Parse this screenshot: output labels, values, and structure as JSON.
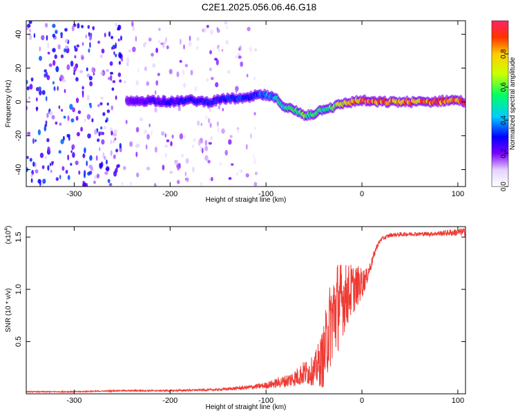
{
  "title": "C2E1.2025.056.06.46.G18",
  "chart_data": [
    {
      "type": "heatmap",
      "xlabel": "Height of straight line (km)",
      "ylabel": "Frequency (Hz)",
      "xlim": [
        -350,
        108
      ],
      "ylim": [
        -50,
        48
      ],
      "xticks": [
        -300,
        -200,
        -100,
        0,
        100
      ],
      "yticks": [
        -40,
        -20,
        0,
        20,
        40
      ],
      "colorbar": {
        "label": "Normalized spectral amplitude",
        "ticks": [
          "0.0",
          "0.2",
          "0.4",
          "0.6",
          "0.8"
        ],
        "range": [
          0,
          1
        ]
      },
      "ridge": [
        {
          "x": -245,
          "f": 0,
          "a": 0.22
        },
        {
          "x": -220,
          "f": 1,
          "a": 0.25
        },
        {
          "x": -200,
          "f": 0,
          "a": 0.28
        },
        {
          "x": -180,
          "f": 1,
          "a": 0.3
        },
        {
          "x": -160,
          "f": 0,
          "a": 0.3
        },
        {
          "x": -140,
          "f": 2,
          "a": 0.32
        },
        {
          "x": -120,
          "f": 2,
          "a": 0.35
        },
        {
          "x": -110,
          "f": 4,
          "a": 0.35
        },
        {
          "x": -100,
          "f": 4,
          "a": 0.4
        },
        {
          "x": -90,
          "f": 2,
          "a": 0.45
        },
        {
          "x": -80,
          "f": -3,
          "a": 0.5
        },
        {
          "x": -70,
          "f": -5,
          "a": 0.55
        },
        {
          "x": -60,
          "f": -8,
          "a": 0.6
        },
        {
          "x": -50,
          "f": -7,
          "a": 0.55
        },
        {
          "x": -40,
          "f": -4,
          "a": 0.55
        },
        {
          "x": -30,
          "f": -3,
          "a": 0.6
        },
        {
          "x": -20,
          "f": -1,
          "a": 0.75
        },
        {
          "x": -10,
          "f": 0,
          "a": 0.8
        },
        {
          "x": 0,
          "f": 1,
          "a": 0.9
        },
        {
          "x": 10,
          "f": 0,
          "a": 0.9
        },
        {
          "x": 30,
          "f": 0,
          "a": 0.85
        },
        {
          "x": 50,
          "f": 0,
          "a": 0.85
        },
        {
          "x": 70,
          "f": 0,
          "a": 0.85
        },
        {
          "x": 90,
          "f": 1,
          "a": 0.9
        },
        {
          "x": 100,
          "f": 1,
          "a": 0.95
        },
        {
          "x": 108,
          "f": 0,
          "a": 0.9
        }
      ]
    },
    {
      "type": "line",
      "xlabel": "Height of straight line (km)",
      "ylabel": "SNR (10 * v/v)",
      "yunit": "(x10",
      "yunit_exp": "4",
      "yunit_close": ")",
      "xlim": [
        -350,
        108
      ],
      "ylim": [
        0,
        1.6
      ],
      "xticks": [
        -300,
        -200,
        -100,
        0,
        100
      ],
      "yticks": [
        "0.5",
        "1.0",
        "1.5"
      ],
      "series": [
        {
          "color": "#ef3a33",
          "x": [
            -350,
            -300,
            -250,
            -200,
            -150,
            -120,
            -100,
            -80,
            -70,
            -60,
            -50,
            -40,
            -35,
            -30,
            -25,
            -20,
            -15,
            -10,
            -5,
            0,
            5,
            10,
            15,
            20,
            30,
            50,
            70,
            90,
            108
          ],
          "y": [
            0.02,
            0.02,
            0.03,
            0.03,
            0.04,
            0.06,
            0.08,
            0.12,
            0.15,
            0.2,
            0.22,
            0.35,
            0.6,
            0.75,
            0.85,
            0.9,
            0.95,
            1.0,
            1.03,
            1.06,
            1.12,
            1.25,
            1.4,
            1.48,
            1.52,
            1.53,
            1.53,
            1.54,
            1.55
          ],
          "noise": [
            0.005,
            0.005,
            0.006,
            0.008,
            0.01,
            0.02,
            0.03,
            0.06,
            0.08,
            0.12,
            0.14,
            0.3,
            0.4,
            0.45,
            0.45,
            0.35,
            0.3,
            0.25,
            0.2,
            0.15,
            0.08,
            0.05,
            0.03,
            0.02,
            0.02,
            0.02,
            0.02,
            0.03,
            0.04
          ]
        }
      ]
    }
  ]
}
